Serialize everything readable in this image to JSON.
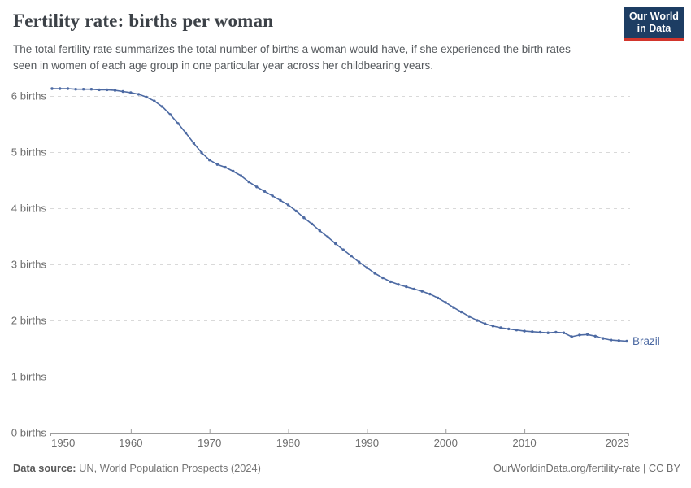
{
  "header": {
    "title": "Fertility rate: births per woman",
    "subtitle": "The total fertility rate summarizes the total number of births a woman would have, if she experienced the birth rates seen in women of each age group in one particular year across her childbearing years."
  },
  "logo": {
    "line1": "Our World",
    "line2": "in Data"
  },
  "chart_data": {
    "type": "line",
    "title": "Fertility rate: births per woman",
    "xlabel": "",
    "ylabel": "births per woman",
    "ylim": [
      0,
      6.5
    ],
    "xlim": [
      1950,
      2023
    ],
    "grid": "dashed-horizontal",
    "legend": "end-of-line label",
    "xticks": [
      1950,
      1960,
      1970,
      1980,
      1990,
      2000,
      2010,
      2023
    ],
    "ytick_values": [
      0,
      1,
      2,
      3,
      4,
      5,
      6
    ],
    "ytick_label_suffix": " births",
    "years": [
      1950,
      1951,
      1952,
      1953,
      1954,
      1955,
      1956,
      1957,
      1958,
      1959,
      1960,
      1961,
      1962,
      1963,
      1964,
      1965,
      1966,
      1967,
      1968,
      1969,
      1970,
      1971,
      1972,
      1973,
      1974,
      1975,
      1976,
      1977,
      1978,
      1979,
      1980,
      1981,
      1982,
      1983,
      1984,
      1985,
      1986,
      1987,
      1988,
      1989,
      1990,
      1991,
      1992,
      1993,
      1994,
      1995,
      1996,
      1997,
      1998,
      1999,
      2000,
      2001,
      2002,
      2003,
      2004,
      2005,
      2006,
      2007,
      2008,
      2009,
      2010,
      2011,
      2012,
      2013,
      2014,
      2015,
      2016,
      2017,
      2018,
      2019,
      2020,
      2021,
      2022,
      2023
    ],
    "series": [
      {
        "name": "Brazil",
        "values": [
          6.13,
          6.13,
          6.13,
          6.12,
          6.12,
          6.12,
          6.11,
          6.11,
          6.1,
          6.08,
          6.06,
          6.03,
          5.98,
          5.91,
          5.81,
          5.67,
          5.51,
          5.34,
          5.16,
          4.99,
          4.86,
          4.78,
          4.73,
          4.66,
          4.58,
          4.47,
          4.38,
          4.3,
          4.22,
          4.14,
          4.06,
          3.95,
          3.83,
          3.72,
          3.6,
          3.49,
          3.37,
          3.26,
          3.15,
          3.04,
          2.94,
          2.84,
          2.76,
          2.69,
          2.64,
          2.6,
          2.56,
          2.52,
          2.47,
          2.4,
          2.32,
          2.23,
          2.15,
          2.07,
          2.0,
          1.94,
          1.9,
          1.87,
          1.85,
          1.83,
          1.81,
          1.8,
          1.79,
          1.78,
          1.79,
          1.78,
          1.71,
          1.74,
          1.75,
          1.72,
          1.68,
          1.65,
          1.64,
          1.63
        ]
      }
    ]
  },
  "footer": {
    "source_label": "Data source:",
    "source_value": "UN, World Population Prospects (2024)",
    "link": "OurWorldinData.org/fertility-rate | CC BY"
  },
  "colors": {
    "line": "#4d6aa3",
    "grid": "#d9d9d9",
    "axis": "#9c9c9c",
    "tick_label": "#6e6e6e",
    "logo_bg": "#1d3d63",
    "logo_stripe": "#d2352c"
  }
}
